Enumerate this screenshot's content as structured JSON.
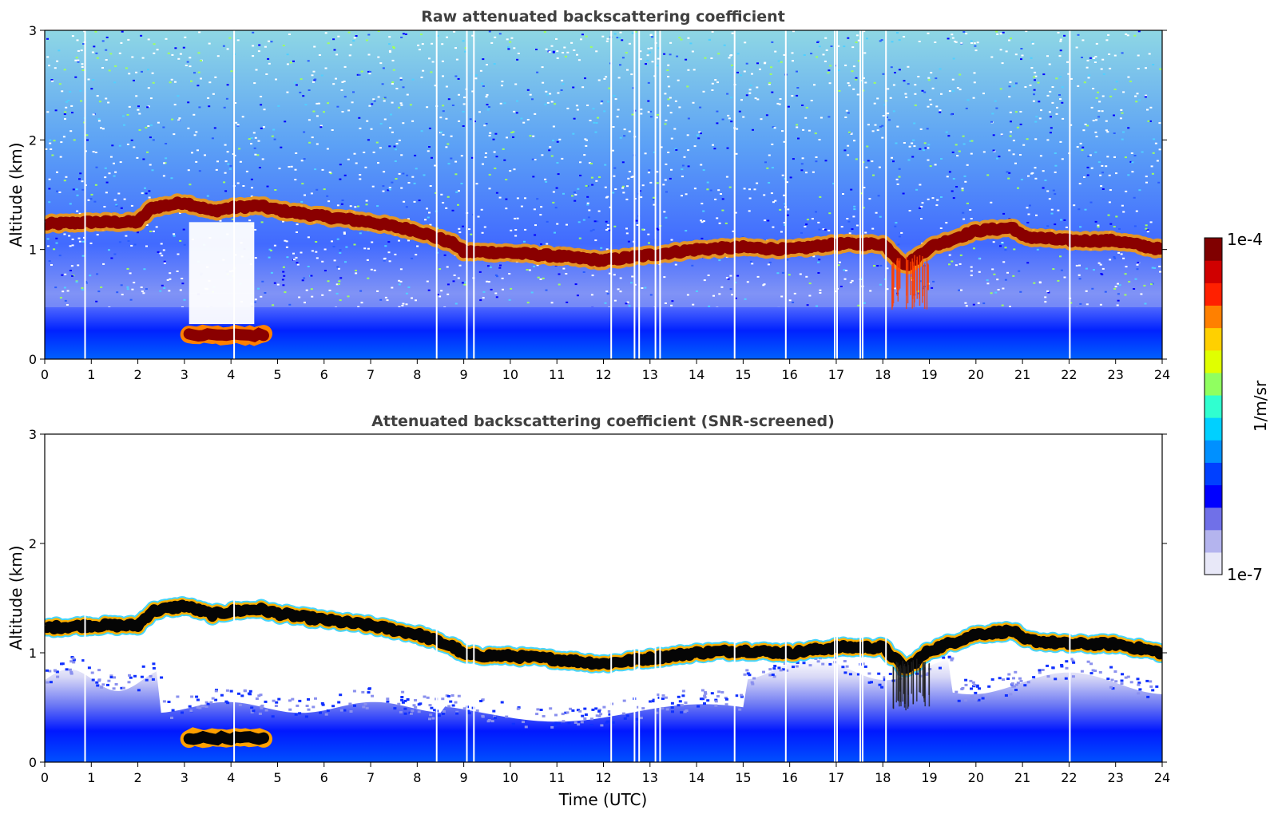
{
  "chart_data": [
    {
      "type": "heatmap",
      "title": "Raw attenuated backscattering coefficient",
      "xlabel": "",
      "ylabel": "Altitude (km)",
      "xlim": [
        0,
        24
      ],
      "ylim": [
        0,
        3
      ],
      "x_ticks": [
        "0",
        "1",
        "2",
        "3",
        "4",
        "5",
        "6",
        "7",
        "8",
        "9",
        "10",
        "11",
        "12",
        "13",
        "14",
        "15",
        "16",
        "17",
        "18",
        "19",
        "20",
        "21",
        "22",
        "23",
        "24"
      ],
      "y_ticks": [
        "0",
        "1",
        "2",
        "3"
      ],
      "cloud_layer": {
        "time_utc": [
          0,
          1,
          2,
          2.3,
          3,
          3.6,
          4,
          4.6,
          5,
          6,
          7,
          8,
          8.8,
          9,
          10,
          11,
          12,
          13,
          14,
          15,
          16,
          17,
          17.5,
          18,
          18.5,
          19,
          20,
          20.8,
          21,
          22,
          23,
          24
        ],
        "altitude_km": [
          1.23,
          1.25,
          1.25,
          1.38,
          1.43,
          1.35,
          1.38,
          1.4,
          1.36,
          1.3,
          1.25,
          1.17,
          1.05,
          0.98,
          0.97,
          0.94,
          0.9,
          0.95,
          1.0,
          1.02,
          1.0,
          1.05,
          1.05,
          1.05,
          0.85,
          1.02,
          1.17,
          1.2,
          1.12,
          1.08,
          1.08,
          1.0
        ]
      },
      "low_cloud": {
        "time_utc": [
          3.1,
          4.7
        ],
        "altitude_km": 0.22
      },
      "signal_gap": {
        "time_utc": [
          3.1,
          4.5
        ]
      },
      "precipitation": [
        {
          "time_utc": [
            18.2,
            19.0
          ],
          "altitude_km": [
            0.45,
            0.95
          ]
        }
      ]
    },
    {
      "type": "heatmap",
      "title": "Attenuated backscattering coefficient (SNR-screened)",
      "xlabel": "Time (UTC)",
      "ylabel": "Altitude (km)",
      "xlim": [
        0,
        24
      ],
      "ylim": [
        0,
        3
      ],
      "x_ticks": [
        "0",
        "1",
        "2",
        "3",
        "4",
        "5",
        "6",
        "7",
        "8",
        "9",
        "10",
        "11",
        "12",
        "13",
        "14",
        "15",
        "16",
        "17",
        "18",
        "19",
        "20",
        "21",
        "22",
        "23",
        "24"
      ],
      "y_ticks": [
        "0",
        "1",
        "2",
        "3"
      ]
    }
  ],
  "colorbar": {
    "label": "1/m/sr",
    "max_label": "1e-4",
    "min_label": "1e-7",
    "colors": [
      "#e8e8f8",
      "#b4b4ee",
      "#7070e8",
      "#0000ff",
      "#0040ff",
      "#0090ff",
      "#00d0ff",
      "#30ffd0",
      "#90ff60",
      "#e0ff00",
      "#ffd000",
      "#ff8000",
      "#ff2000",
      "#d00000",
      "#800000"
    ]
  }
}
